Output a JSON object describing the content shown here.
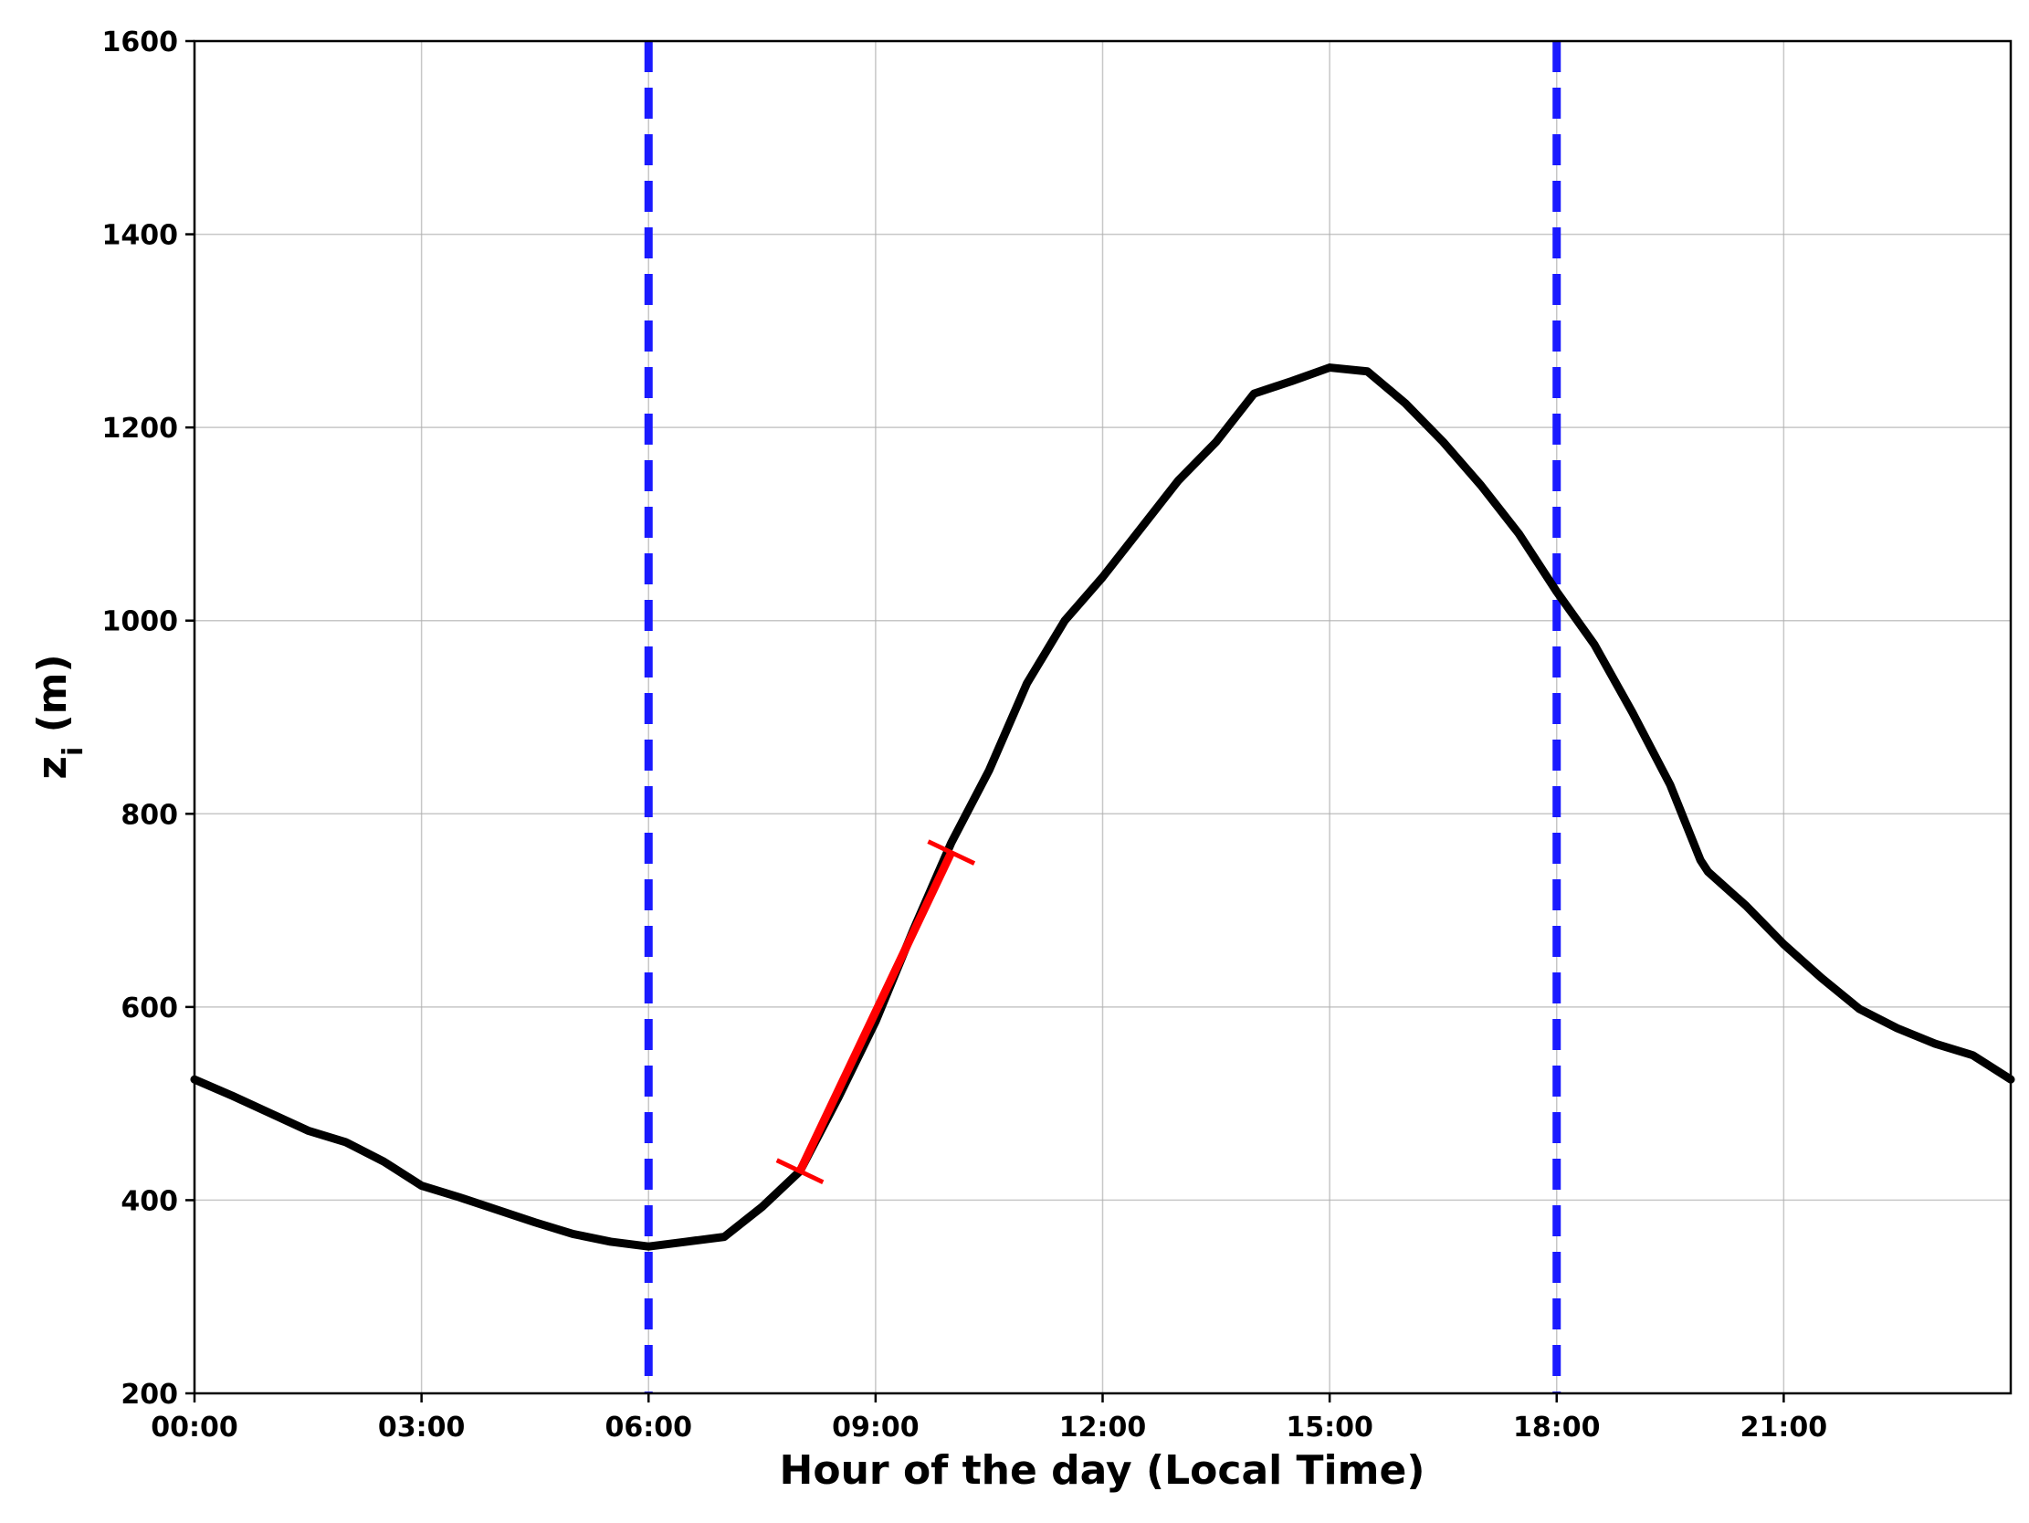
{
  "chart_data": {
    "type": "line",
    "title": "",
    "xlabel": "Hour of the day (Local Time)",
    "ylabel_main": "z",
    "ylabel_sub": "i",
    "ylabel_unit": " (m)",
    "xlim": [
      0,
      24
    ],
    "ylim": [
      200,
      1600
    ],
    "x_ticks": [
      0,
      3,
      6,
      9,
      12,
      15,
      18,
      21
    ],
    "x_tick_labels": [
      "00:00",
      "03:00",
      "06:00",
      "09:00",
      "12:00",
      "15:00",
      "18:00",
      "21:00"
    ],
    "y_ticks": [
      200,
      400,
      600,
      800,
      1000,
      1200,
      1400,
      1600
    ],
    "y_tick_labels": [
      "200",
      "400",
      "600",
      "800",
      "1000",
      "1200",
      "1400",
      "1600"
    ],
    "grid": true,
    "series": [
      {
        "color": "#000000",
        "x": [
          0,
          0.5,
          1,
          1.5,
          2,
          2.5,
          3,
          3.5,
          4,
          4.5,
          5,
          5.5,
          6,
          6.5,
          7,
          7.5,
          8,
          8.5,
          9,
          9.5,
          10,
          10.5,
          11,
          11.5,
          12,
          12.5,
          13,
          13.5,
          14,
          14.5,
          15,
          15.5,
          16,
          16.5,
          17,
          17.5,
          18,
          18.5,
          19,
          19.5,
          19.9,
          20,
          20.5,
          21,
          21.5,
          22,
          22.5,
          23,
          23.5,
          24
        ],
        "y": [
          525,
          508,
          490,
          472,
          460,
          440,
          415,
          403,
          390,
          377,
          365,
          357,
          352,
          357,
          362,
          393,
          430,
          505,
          585,
          680,
          770,
          845,
          935,
          1000,
          1045,
          1095,
          1145,
          1185,
          1235,
          1248,
          1262,
          1258,
          1225,
          1185,
          1140,
          1090,
          1030,
          975,
          905,
          830,
          752,
          740,
          705,
          665,
          630,
          598,
          578,
          562,
          550,
          525
        ]
      }
    ],
    "vertical_lines": [
      {
        "x": 6,
        "color": "#1a1aff",
        "style": "dashed"
      },
      {
        "x": 18,
        "color": "#1a1aff",
        "style": "dashed"
      }
    ],
    "fit_segment": {
      "x": [
        8,
        10
      ],
      "y": [
        430,
        760
      ],
      "color": "#ff0000"
    }
  }
}
